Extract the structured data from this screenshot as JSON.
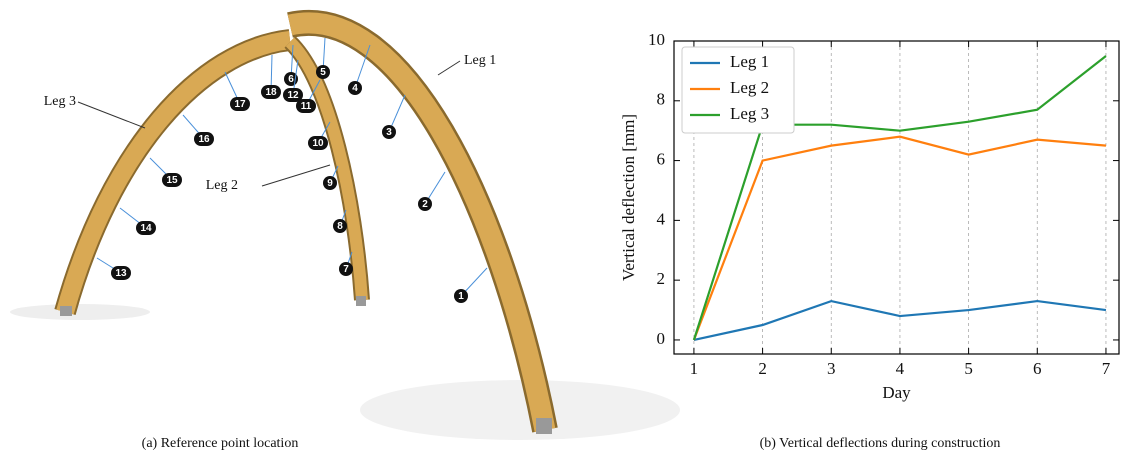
{
  "figure": {
    "captions": [
      "(a) Reference point location",
      "(b) Vertical deflections during construction"
    ],
    "diagram": {
      "legs": [
        "Leg 1",
        "Leg 2",
        "Leg 3"
      ],
      "points": [
        "1",
        "2",
        "3",
        "4",
        "5",
        "6",
        "7",
        "8",
        "9",
        "10",
        "11",
        "12",
        "13",
        "14",
        "15",
        "16",
        "17",
        "18"
      ]
    }
  },
  "chart_data": {
    "type": "line",
    "xlabel": "Day",
    "ylabel": "Vertical deflection [mm]",
    "x": [
      1,
      2,
      3,
      4,
      5,
      6,
      7
    ],
    "series": [
      {
        "name": "Leg 1",
        "color": "#1f77b4",
        "values": [
          0,
          0.5,
          1.3,
          0.8,
          1.0,
          1.3,
          1.0
        ]
      },
      {
        "name": "Leg 2",
        "color": "#ff7f0e",
        "values": [
          0,
          6.0,
          6.5,
          6.8,
          6.2,
          6.7,
          6.5
        ]
      },
      {
        "name": "Leg 3",
        "color": "#2ca02c",
        "values": [
          0,
          7.2,
          7.2,
          7.0,
          7.3,
          7.7,
          9.5
        ]
      }
    ],
    "xlim": [
      0.71,
      7.19
    ],
    "ylim": [
      -0.47,
      10
    ],
    "xticks": [
      1,
      2,
      3,
      4,
      5,
      6,
      7
    ],
    "yticks": [
      0,
      2,
      4,
      6,
      8,
      10
    ],
    "grid": "x",
    "legend": "upper left"
  }
}
